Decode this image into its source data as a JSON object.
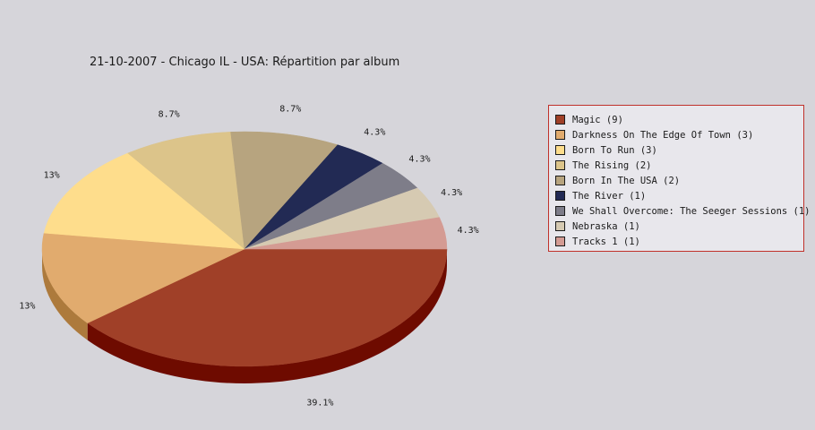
{
  "chart_data": {
    "type": "pie",
    "title": "21-10-2007 - Chicago IL - USA:  Répartition par album",
    "slices": [
      {
        "label": "Magic (9)",
        "value": 9,
        "percent_label": "39.1%",
        "color": "#a04028",
        "side_color": "#6e0b00"
      },
      {
        "label": "Darkness On The Edge Of Town (3)",
        "value": 3,
        "percent_label": "13%",
        "color": "#e1ab6e",
        "side_color": "#ad7a3c"
      },
      {
        "label": "Born To Run (3)",
        "value": 3,
        "percent_label": "13%",
        "color": "#fedd8c",
        "side_color": "#cfae5f"
      },
      {
        "label": "The Rising (2)",
        "value": 2,
        "percent_label": "8.7%",
        "color": "#dcc48a",
        "side_color": "#ab9560"
      },
      {
        "label": "Born In The USA (2)",
        "value": 2,
        "percent_label": "8.7%",
        "color": "#b7a47f",
        "side_color": "#877558"
      },
      {
        "label": "The River (1)",
        "value": 1,
        "percent_label": "4.3%",
        "color": "#222a54",
        "side_color": "#0d1230"
      },
      {
        "label": "We Shall Overcome: The Seeger Sessions (1)",
        "value": 1,
        "percent_label": "4.3%",
        "color": "#7e7d89",
        "side_color": "#55545e"
      },
      {
        "label": "Nebraska (1)",
        "value": 1,
        "percent_label": "4.3%",
        "color": "#d6cab2",
        "side_color": "#a8987e"
      },
      {
        "label": "Tracks 1 (1)",
        "value": 1,
        "percent_label": "4.3%",
        "color": "#d49b93",
        "side_color": "#a06a62"
      }
    ],
    "legend_position": "right"
  }
}
